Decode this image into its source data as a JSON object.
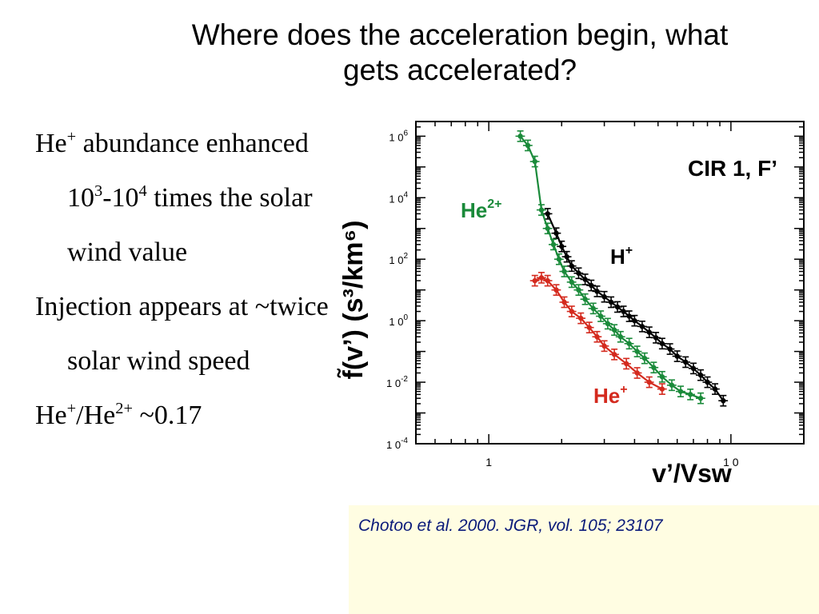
{
  "slide": {
    "title_line1": "Where does the acceleration begin, what",
    "title_line2": "gets accelerated?",
    "bullets": [
      {
        "parts": [
          {
            "t": "He"
          },
          {
            "sup": "+"
          },
          {
            "t": " abundance enhanced 10"
          },
          {
            "sup": "3"
          },
          {
            "t": "-10"
          },
          {
            "sup": "4"
          },
          {
            "t": " times the solar wind value"
          }
        ]
      },
      {
        "parts": [
          {
            "t": "Injection appears at ~twice solar wind speed"
          }
        ]
      },
      {
        "parts": [
          {
            "t": "He"
          },
          {
            "sup": "+"
          },
          {
            "t": "/He"
          },
          {
            "sup": "2+"
          },
          {
            "t": " ~0.17"
          }
        ]
      }
    ],
    "citation": "Chotoo et al. 2000. JGR, vol. 105; 23107",
    "citation_bg": "#fffde2",
    "citation_color": "#0a1a7a"
  },
  "chart_data": {
    "type": "scatter",
    "title": "CIR 1, F’",
    "xlabel": "v’/Vsw",
    "ylabel": "f̃(v’) (s³/km⁶)",
    "x_scale": "log",
    "y_scale": "log",
    "xlim": [
      0.5,
      20
    ],
    "ylim": [
      0.0001,
      3000000
    ],
    "x_ticks": [
      {
        "v": 1,
        "label": "1 "
      },
      {
        "v": 10,
        "label": "1 0"
      }
    ],
    "y_ticks": [
      {
        "v": 1000000,
        "base": "1 0",
        "exp": "6"
      },
      {
        "v": 10000,
        "base": "1 0",
        "exp": "4"
      },
      {
        "v": 100,
        "base": "1 0",
        "exp": "2"
      },
      {
        "v": 1,
        "base": "1 0",
        "exp": "0"
      },
      {
        "v": 0.01,
        "base": "1 0",
        "exp": "-2"
      },
      {
        "v": 0.0001,
        "base": "1 0",
        "exp": "-4"
      }
    ],
    "series": [
      {
        "name": "H+",
        "label_base": "H",
        "label_sup": "+",
        "color": "#000000",
        "fit_line": true,
        "x": [
          1.75,
          1.9,
          2.0,
          2.1,
          2.2,
          2.35,
          2.5,
          2.65,
          2.8,
          3.0,
          3.2,
          3.4,
          3.6,
          3.8,
          4.0,
          4.3,
          4.6,
          4.9,
          5.2,
          5.6,
          6.0,
          6.5,
          7.0,
          7.5,
          8.0,
          8.6,
          9.3
        ],
        "y": [
          3000,
          700,
          260,
          120,
          60,
          35,
          22,
          14,
          9,
          6,
          4,
          2.8,
          2,
          1.4,
          1,
          0.65,
          0.42,
          0.28,
          0.18,
          0.12,
          0.07,
          0.045,
          0.028,
          0.017,
          0.01,
          0.006,
          0.0025
        ]
      },
      {
        "name": "He2+",
        "label_base": "He",
        "label_sup": "2+",
        "color": "#1a8a3a",
        "fit_line": true,
        "x": [
          1.35,
          1.45,
          1.55,
          1.65,
          1.75,
          1.85,
          1.95,
          2.05,
          2.2,
          2.35,
          2.5,
          2.7,
          2.9,
          3.1,
          3.3,
          3.5,
          3.8,
          4.1,
          4.4,
          4.8,
          5.2,
          5.7,
          6.2,
          6.8,
          7.5
        ],
        "y": [
          1000000,
          500000,
          150000,
          4000,
          1000,
          300,
          100,
          40,
          18,
          10,
          5,
          2.5,
          1.4,
          0.8,
          0.5,
          0.3,
          0.18,
          0.1,
          0.06,
          0.03,
          0.015,
          0.008,
          0.005,
          0.004,
          0.003
        ]
      },
      {
        "name": "He+",
        "label_base": "He",
        "label_sup": "+",
        "color": "#d42a1e",
        "fit_line": true,
        "x": [
          1.55,
          1.65,
          1.75,
          1.9,
          2.05,
          2.2,
          2.4,
          2.6,
          2.8,
          3.0,
          3.3,
          3.7,
          4.1,
          4.6,
          5.2
        ],
        "y": [
          20,
          25,
          20,
          10,
          4,
          2,
          1.2,
          0.6,
          0.3,
          0.15,
          0.08,
          0.04,
          0.02,
          0.01,
          0.006
        ]
      }
    ]
  }
}
